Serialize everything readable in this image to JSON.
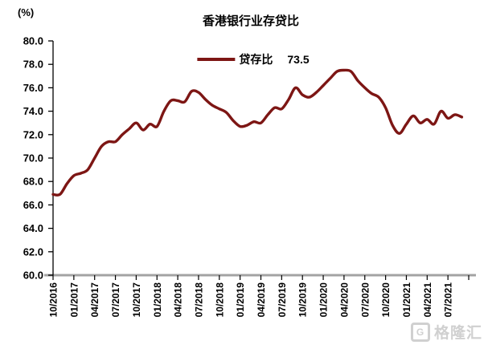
{
  "header": {
    "unit_label": "(%)",
    "title": "香港银行业存贷比"
  },
  "legend": {
    "series_label": "贷存比",
    "current_value": "73.5"
  },
  "watermark": {
    "logo_letter": "G",
    "text": "格隆汇"
  },
  "colors": {
    "line": "#7D1614",
    "axis": "#000000",
    "baseline": "#A3A3A3",
    "tick_text": "#000000",
    "watermark": "#CBCBCB"
  },
  "chart_data": {
    "type": "line",
    "title": "香港银行业存贷比",
    "ylabel": "(%)",
    "ylim": [
      60.0,
      80.0
    ],
    "y_ticks": [
      80.0,
      78.0,
      76.0,
      74.0,
      72.0,
      70.0,
      68.0,
      66.0,
      64.0,
      62.0,
      60.0
    ],
    "grid": false,
    "legend_position": "top-center",
    "x_tick_labels": [
      "10/2016",
      "01/2017",
      "04/2017",
      "07/2017",
      "10/2017",
      "01/2018",
      "04/2018",
      "07/2018",
      "10/2018",
      "01/2019",
      "04/2019",
      "07/2019",
      "10/2019",
      "01/2020",
      "04/2020",
      "07/2020",
      "10/2020",
      "01/2021",
      "04/2021",
      "07/2021"
    ],
    "series": [
      {
        "name": "贷存比",
        "last_value_label": "73.5",
        "x": [
          "10/2016",
          "11/2016",
          "12/2016",
          "01/2017",
          "02/2017",
          "03/2017",
          "04/2017",
          "05/2017",
          "06/2017",
          "07/2017",
          "08/2017",
          "09/2017",
          "10/2017",
          "11/2017",
          "12/2017",
          "01/2018",
          "02/2018",
          "03/2018",
          "04/2018",
          "05/2018",
          "06/2018",
          "07/2018",
          "08/2018",
          "09/2018",
          "10/2018",
          "11/2018",
          "12/2018",
          "01/2019",
          "02/2019",
          "03/2019",
          "04/2019",
          "05/2019",
          "06/2019",
          "07/2019",
          "08/2019",
          "09/2019",
          "10/2019",
          "11/2019",
          "12/2019",
          "01/2020",
          "02/2020",
          "03/2020",
          "04/2020",
          "05/2020",
          "06/2020",
          "07/2020",
          "08/2020",
          "09/2020",
          "10/2020",
          "11/2020",
          "12/2020",
          "01/2021",
          "02/2021",
          "03/2021",
          "04/2021",
          "05/2021",
          "06/2021",
          "07/2021",
          "08/2021",
          "09/2021"
        ],
        "values": [
          66.9,
          66.9,
          67.8,
          68.5,
          68.7,
          69.0,
          70.0,
          71.0,
          71.4,
          71.4,
          72.0,
          72.5,
          73.0,
          72.4,
          72.9,
          72.7,
          74.0,
          74.9,
          74.9,
          74.8,
          75.7,
          75.6,
          75.0,
          74.5,
          74.2,
          73.9,
          73.2,
          72.7,
          72.8,
          73.1,
          73.0,
          73.7,
          74.3,
          74.2,
          75.0,
          76.0,
          75.4,
          75.2,
          75.6,
          76.2,
          76.8,
          77.4,
          77.5,
          77.4,
          76.6,
          76.0,
          75.5,
          75.2,
          74.3,
          72.8,
          72.1,
          72.9,
          73.6,
          73.0,
          73.3,
          72.9,
          74.0,
          73.4,
          73.7,
          73.5
        ]
      }
    ]
  }
}
